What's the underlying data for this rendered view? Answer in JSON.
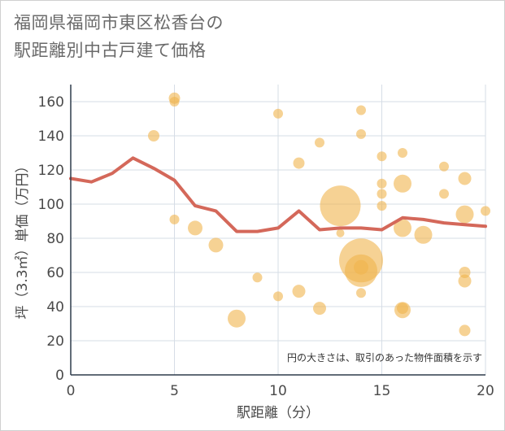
{
  "title_lines": [
    "福岡県福岡市東区松香台の",
    "駅距離別中古戸建て価格"
  ],
  "chart_data": {
    "type": "scatter",
    "title": "福岡県福岡市東区松香台の駅距離別中古戸建て価格",
    "xlabel": "駅距離（分）",
    "ylabel": "坪（3.3㎡）単価（万円）",
    "xlim": [
      0,
      20
    ],
    "ylim": [
      0,
      170
    ],
    "xticks": [
      0,
      5,
      10,
      15,
      20
    ],
    "yticks": [
      0,
      20,
      40,
      60,
      80,
      100,
      120,
      140,
      160
    ],
    "grid": true,
    "note": "円の大きさは、取引のあった物件面積を示す",
    "bubble_color": "#f0b44c",
    "line_color": "#d4685a",
    "points": [
      {
        "x": 4,
        "y": 140,
        "s": 7
      },
      {
        "x": 5,
        "y": 162,
        "s": 7
      },
      {
        "x": 5,
        "y": 160,
        "s": 6
      },
      {
        "x": 5,
        "y": 91,
        "s": 6
      },
      {
        "x": 6,
        "y": 86,
        "s": 9
      },
      {
        "x": 7,
        "y": 76,
        "s": 9
      },
      {
        "x": 8,
        "y": 33,
        "s": 11
      },
      {
        "x": 9,
        "y": 57,
        "s": 6
      },
      {
        "x": 10,
        "y": 153,
        "s": 6
      },
      {
        "x": 10,
        "y": 46,
        "s": 6
      },
      {
        "x": 11,
        "y": 124,
        "s": 7
      },
      {
        "x": 11,
        "y": 49,
        "s": 8
      },
      {
        "x": 12,
        "y": 136,
        "s": 6
      },
      {
        "x": 12,
        "y": 39,
        "s": 8
      },
      {
        "x": 13,
        "y": 99,
        "s": 25
      },
      {
        "x": 13,
        "y": 83,
        "s": 5
      },
      {
        "x": 14,
        "y": 155,
        "s": 6
      },
      {
        "x": 14,
        "y": 141,
        "s": 6
      },
      {
        "x": 14,
        "y": 67,
        "s": 27
      },
      {
        "x": 14,
        "y": 61,
        "s": 20
      },
      {
        "x": 14,
        "y": 63,
        "s": 9
      },
      {
        "x": 14,
        "y": 48,
        "s": 6
      },
      {
        "x": 15,
        "y": 128,
        "s": 6
      },
      {
        "x": 15,
        "y": 112,
        "s": 6
      },
      {
        "x": 15,
        "y": 106,
        "s": 6
      },
      {
        "x": 15,
        "y": 99,
        "s": 6
      },
      {
        "x": 16,
        "y": 130,
        "s": 6
      },
      {
        "x": 16,
        "y": 112,
        "s": 11
      },
      {
        "x": 16,
        "y": 86,
        "s": 11
      },
      {
        "x": 16,
        "y": 38,
        "s": 10
      },
      {
        "x": 16,
        "y": 39,
        "s": 7
      },
      {
        "x": 17,
        "y": 82,
        "s": 11
      },
      {
        "x": 18,
        "y": 122,
        "s": 6
      },
      {
        "x": 18,
        "y": 106,
        "s": 6
      },
      {
        "x": 19,
        "y": 115,
        "s": 8
      },
      {
        "x": 19,
        "y": 94,
        "s": 11
      },
      {
        "x": 19,
        "y": 60,
        "s": 7
      },
      {
        "x": 19,
        "y": 55,
        "s": 8
      },
      {
        "x": 19,
        "y": 26,
        "s": 7
      },
      {
        "x": 20,
        "y": 96,
        "s": 6
      }
    ],
    "trend": {
      "x": [
        0,
        1,
        2,
        3,
        4,
        5,
        6,
        7,
        8,
        9,
        10,
        11,
        12,
        13,
        14,
        15,
        16,
        17,
        18,
        19,
        20
      ],
      "y": [
        115,
        113,
        118,
        127,
        121,
        114,
        99,
        96,
        84,
        84,
        86,
        96,
        85,
        86,
        86,
        85,
        92,
        91,
        89,
        88,
        87
      ]
    }
  }
}
